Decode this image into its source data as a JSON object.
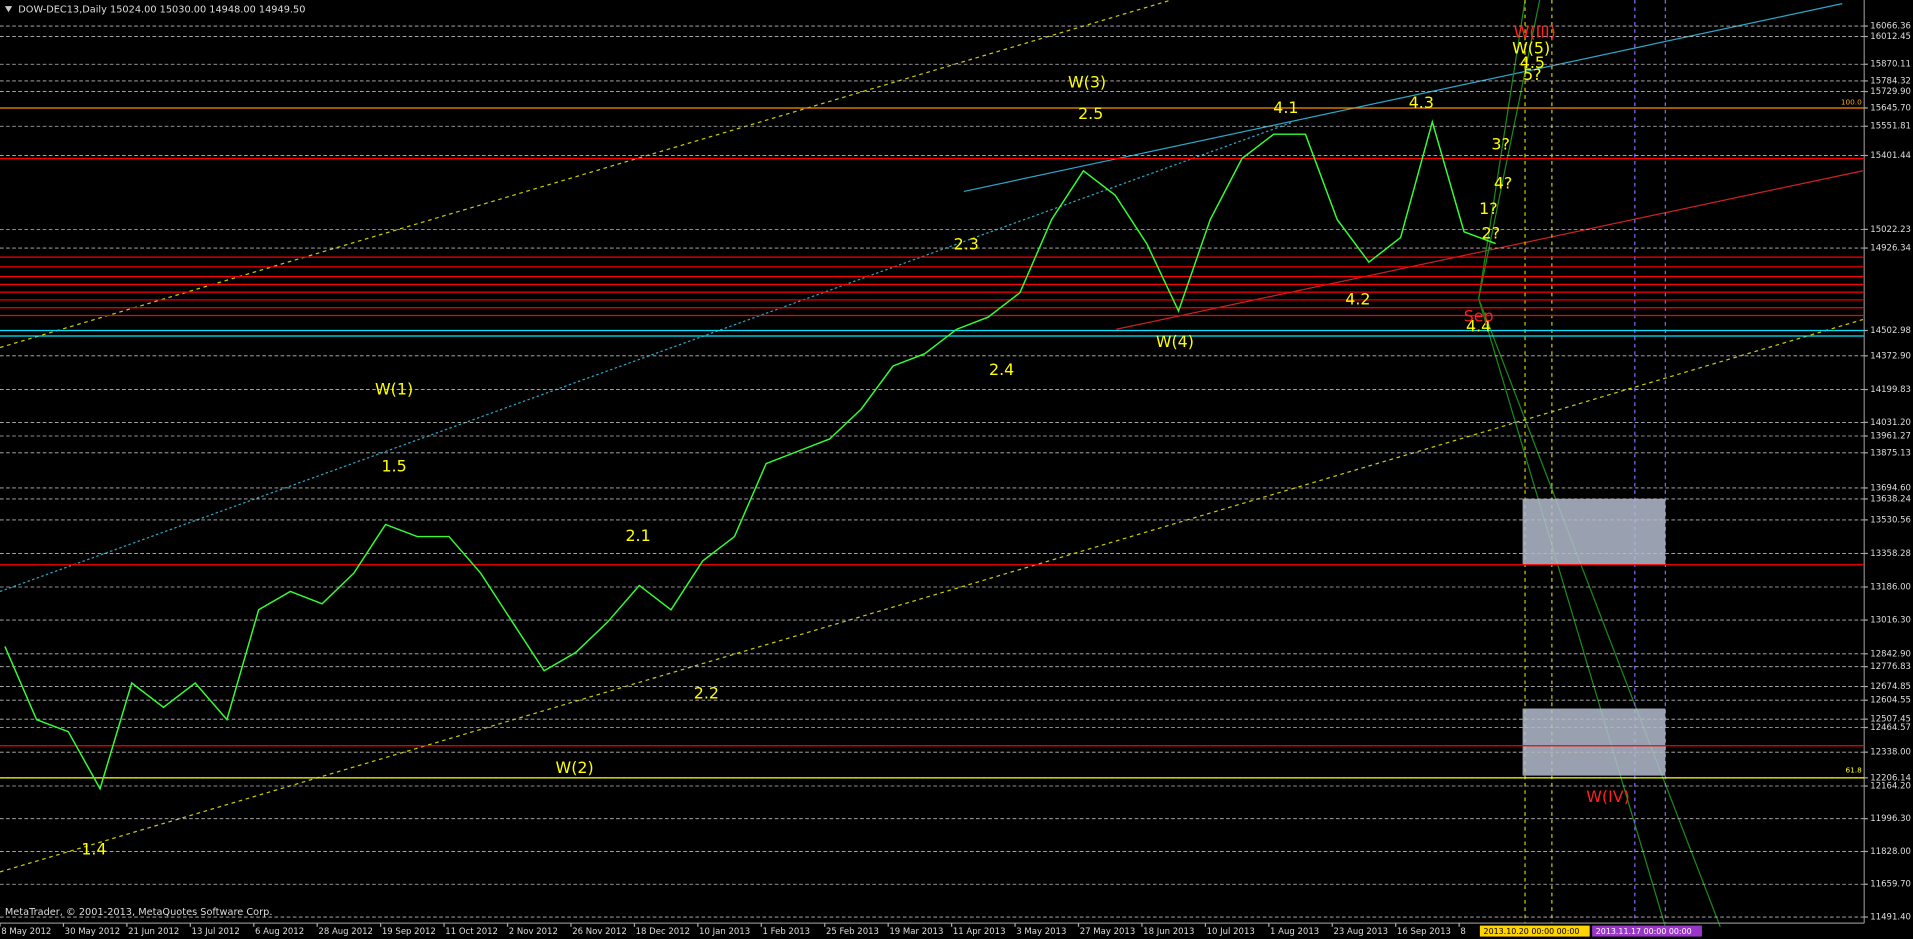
{
  "chart_data": {
    "type": "line",
    "title": "DOW-DEC13,Daily  15024.00 15030.00 14948.00 14949.50",
    "footer": "MetaTrader, © 2001-2013, MetaQuotes Software Corp.",
    "categories": [
      "8 May 2012",
      null,
      "30 May 2012",
      null,
      "21 Jun 2012",
      null,
      "13 Jul 2012",
      null,
      "6 Aug 2012",
      null,
      "28 Aug 2012",
      null,
      "19 Sep 2012",
      null,
      "11 Oct 2012",
      null,
      "2 Nov 2012",
      null,
      "26 Nov 2012",
      null,
      "18 Dec 2012",
      null,
      "10 Jan 2013",
      null,
      "1 Feb 2013",
      null,
      "25 Feb 2013",
      null,
      "19 Mar 2013",
      null,
      "11 Apr 2013",
      null,
      "3 May 2013",
      null,
      "27 May 2013",
      null,
      "18 Jun 2013",
      null,
      "10 Jul 2013",
      null,
      "1 Aug 2013",
      null,
      "23 Aug 2013",
      null,
      "16 Sep 2013",
      null,
      "8",
      null
    ],
    "series": [
      {
        "color": "#33ff33",
        "values": [
          12881,
          12505,
          12443,
          12150,
          12693,
          12568,
          12693,
          12505,
          13069,
          13163,
          13100,
          13257,
          13507,
          13445,
          13445,
          13257,
          13006,
          12756,
          12850,
          13006,
          13194,
          13069,
          13320,
          13445,
          13820,
          13883,
          13946,
          14100,
          14321,
          14384,
          14509,
          14572,
          14697,
          15073,
          15323,
          15198,
          14948,
          14603,
          15073,
          15386,
          15511,
          15511,
          15073,
          14854,
          14980,
          15574,
          15010,
          14949.5
        ]
      }
    ],
    "ylim": [
      11460,
      16200
    ],
    "yticks": [
      16066.36,
      16012.45,
      15870.11,
      15784.32,
      {
        "value": 15729.9,
        "label": "15729.90"
      },
      {
        "value": 15645.7,
        "label": "15645.70"
      },
      15551.81,
      15401.44,
      15022.23,
      14926.34,
      14502.98,
      {
        "value": 14372.9,
        "label": "14372.90"
      },
      14199.83,
      {
        "value": 14031.2,
        "label": "14031.20"
      },
      13961.27,
      13875.13,
      {
        "value": 13694.6,
        "label": "13694.60"
      },
      13638.24,
      13530.56,
      13358.28,
      {
        "value": 13186,
        "label": "13186.00"
      },
      {
        "value": 13016.3,
        "label": "13016.30"
      },
      {
        "value": 12842.9,
        "label": "12842.90"
      },
      12776.83,
      12674.85,
      12604.55,
      12507.45,
      12464.57,
      {
        "value": 12338,
        "label": "12338.00"
      },
      12206.14,
      {
        "value": 12164.2,
        "label": "12164.20"
      },
      {
        "value": 11996.3,
        "label": "11996.30"
      },
      {
        "value": 11828,
        "label": "11828.00"
      },
      {
        "value": 11659.7,
        "label": "11659.70"
      },
      {
        "value": 11491.4,
        "label": "11491.40"
      }
    ],
    "grid": true,
    "levels": [
      {
        "value": 15645.7,
        "color": "#ff8c00"
      },
      {
        "value": 15386,
        "color": "#ff0000"
      },
      {
        "value": 14880,
        "color": "#ff0000"
      },
      {
        "value": 14830,
        "color": "#ff0000"
      },
      {
        "value": 14780,
        "color": "#ff0000"
      },
      {
        "value": 14740,
        "color": "#ff0000"
      },
      {
        "value": 14700,
        "color": "#ff0000"
      },
      {
        "value": 14660,
        "color": "#ff0000"
      },
      {
        "value": 14620,
        "color": "#ff0000"
      },
      {
        "value": 14580,
        "color": "#ff0000"
      },
      {
        "value": 14502.98,
        "color": "#00e5ff"
      },
      {
        "value": 14475,
        "color": "#00e5ff"
      },
      {
        "value": 13300,
        "color": "#ff0000"
      },
      {
        "value": 12371,
        "color": "#ff0000"
      },
      {
        "value": 12206.14,
        "color": "#ffff00"
      }
    ],
    "fib_labels": [
      "100.0",
      "61.8"
    ],
    "time_labels": [
      "2013.10.20 00:00 00:00",
      "2013.11.17 00:00 00:00"
    ],
    "annotations": [
      "W(1)",
      "1.5",
      "1.4",
      "W(2)",
      "2.1",
      "2.2",
      "2.3",
      "2.4",
      "W(3)",
      "2.5",
      "W(4)",
      "4.1",
      "4.2",
      "4.3",
      "4.4",
      "W(5)",
      "4.5",
      "5?",
      "3?",
      "4?",
      "1?",
      "2?",
      "W(III)",
      "W(IV)",
      "Sep"
    ]
  }
}
